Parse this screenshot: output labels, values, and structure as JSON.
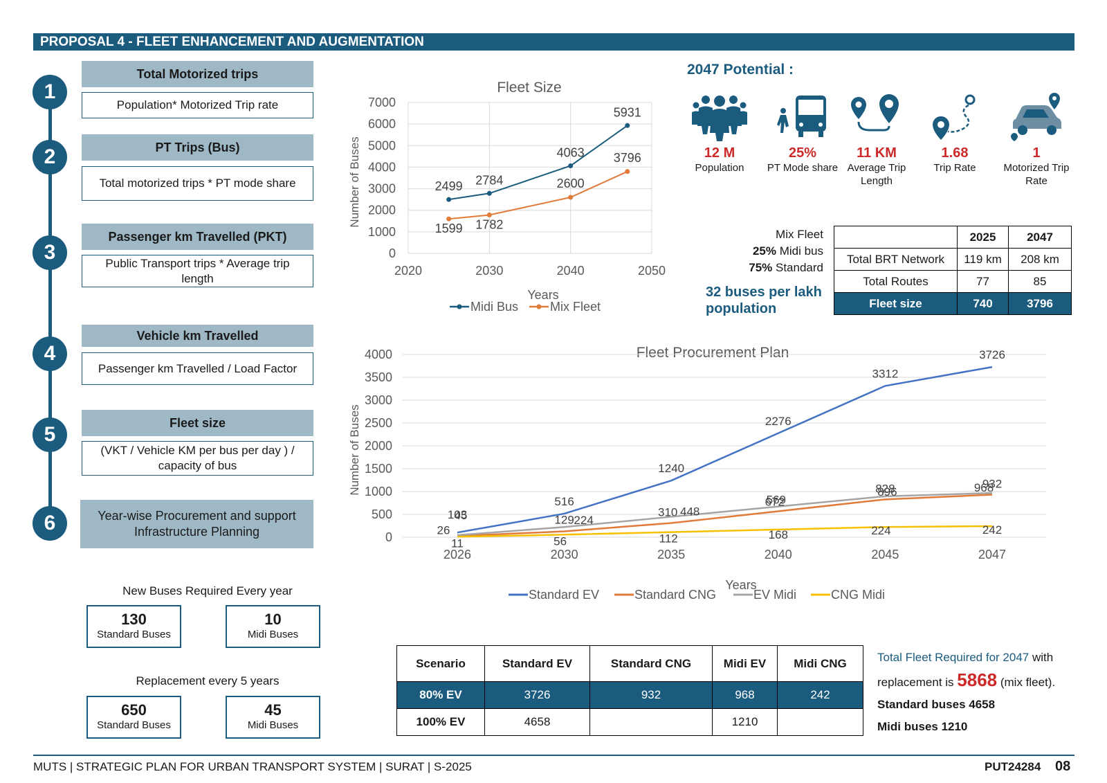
{
  "banner": "PROPOSAL 4 - FLEET ENHANCEMENT AND AUGMENTATION",
  "steps": [
    {
      "num": "1",
      "head": "Total Motorized trips",
      "formula": "Population* Motorized Trip rate"
    },
    {
      "num": "2",
      "head": "PT Trips (Bus)",
      "formula": "Total motorized trips * PT mode share"
    },
    {
      "num": "3",
      "head": "Passenger km Travelled (PKT)",
      "formula": "Public Transport trips * Average trip length"
    },
    {
      "num": "4",
      "head": "Vehicle km Travelled",
      "formula": "Passenger km Travelled  / Load Factor"
    },
    {
      "num": "5",
      "head": "Fleet size",
      "formula": "(VKT / Vehicle KM per bus per day ) / capacity of bus"
    },
    {
      "num": "6",
      "head": "Year-wise Procurement and support Infrastructure Planning"
    }
  ],
  "new_buses": {
    "title": "New Buses Required Every year",
    "standard": {
      "num": "130",
      "label": "Standard Buses"
    },
    "midi": {
      "num": "10",
      "label": "Midi Buses"
    }
  },
  "replacement": {
    "title": "Replacement every 5 years",
    "standard": {
      "num": "650",
      "label": "Standard Buses"
    },
    "midi": {
      "num": "45",
      "label": "Midi Buses"
    }
  },
  "potential": {
    "title": "2047 Potential :",
    "items": [
      {
        "icon": "population-icon",
        "value": "12 M",
        "label": "Population"
      },
      {
        "icon": "bus-icon",
        "value": "25%",
        "label": "PT Mode share"
      },
      {
        "icon": "location-pins-icon",
        "value": "11 KM",
        "label": "Average Trip Length"
      },
      {
        "icon": "route-icon",
        "value": "1.68",
        "label": "Trip Rate"
      },
      {
        "icon": "car-location-icon",
        "value": "1",
        "label": "Motorized Trip Rate"
      }
    ]
  },
  "mix_fleet": {
    "title": "Mix Fleet",
    "midi_pct": "25%",
    "midi_text": " Midi bus",
    "std_pct": "75%",
    "std_text": " Standard"
  },
  "buses_per_lakh": "32 buses per lakh population",
  "brt_table": {
    "headers": [
      "",
      "2025",
      "2047"
    ],
    "rows": [
      [
        "Total BRT Network",
        "119 km",
        "208 km"
      ],
      [
        "Total Routes",
        "77",
        "85"
      ],
      [
        "Fleet size",
        "740",
        "3796"
      ]
    ]
  },
  "scenario_table": {
    "headers": [
      "Scenario",
      "Standard EV",
      "Standard CNG",
      "Midi EV",
      "Midi CNG"
    ],
    "rows": [
      [
        "80%  EV",
        "3726",
        "932",
        "968",
        "242"
      ],
      [
        "100% EV",
        "4658",
        "",
        "1210",
        ""
      ]
    ]
  },
  "total_note": {
    "line1": "Total Fleet Required for 2047",
    "line1b": " with replacement is ",
    "big": "5868",
    "line1c": " (mix fleet).",
    "line2": "Standard buses 4658",
    "line3": "Midi buses 1210"
  },
  "footer": {
    "left": "MUTS  | STRATEGIC PLAN FOR URBAN TRANSPORT SYSTEM | SURAT | S-2025",
    "code": "PUT24284",
    "page": "08"
  },
  "colors": {
    "primary": "#1b5b7e",
    "head_bg": "#9fb8c6",
    "accent_red": "#cc2a2a"
  },
  "chart_data": [
    {
      "type": "line",
      "title": "Fleet Size",
      "xlabel": "Years",
      "ylabel": "Number of Buses",
      "xlim": [
        2020,
        2050
      ],
      "ylim": [
        0,
        7000
      ],
      "xticks": [
        2020,
        2030,
        2040,
        2050
      ],
      "yticks": [
        0,
        1000,
        2000,
        3000,
        4000,
        5000,
        6000,
        7000
      ],
      "grid": true,
      "legend": "bottom",
      "x": [
        2025,
        2030,
        2040,
        2047
      ],
      "series": [
        {
          "name": "Midi Bus",
          "color": "#1b5b7e",
          "values": [
            2499,
            2784,
            4063,
            5931
          ]
        },
        {
          "name": "Mix Fleet",
          "color": "#e07b39",
          "values": [
            1599,
            1782,
            2600,
            3796
          ]
        }
      ]
    },
    {
      "type": "line",
      "title": "Fleet Procurement Plan",
      "xlabel": "Years",
      "ylabel": "Number of Buses",
      "categories": [
        "2026",
        "2030",
        "2035",
        "2040",
        "2045",
        "2047"
      ],
      "ylim": [
        0,
        4000
      ],
      "yticks": [
        0,
        500,
        1000,
        1500,
        2000,
        2500,
        3000,
        3500,
        4000
      ],
      "grid": true,
      "legend": "bottom",
      "series": [
        {
          "name": "Standard EV",
          "color": "#4472c4",
          "values": [
            103,
            516,
            1240,
            2276,
            3312,
            3726
          ]
        },
        {
          "name": "Standard CNG",
          "color": "#e07b39",
          "values": [
            26,
            129,
            310,
            569,
            828,
            932
          ]
        },
        {
          "name": "EV Midi",
          "color": "#a5a5a5",
          "values": [
            45,
            224,
            448,
            672,
            896,
            968
          ]
        },
        {
          "name": "CNG Midi",
          "color": "#f5c000",
          "values": [
            11,
            56,
            112,
            168,
            224,
            242
          ]
        }
      ]
    }
  ]
}
